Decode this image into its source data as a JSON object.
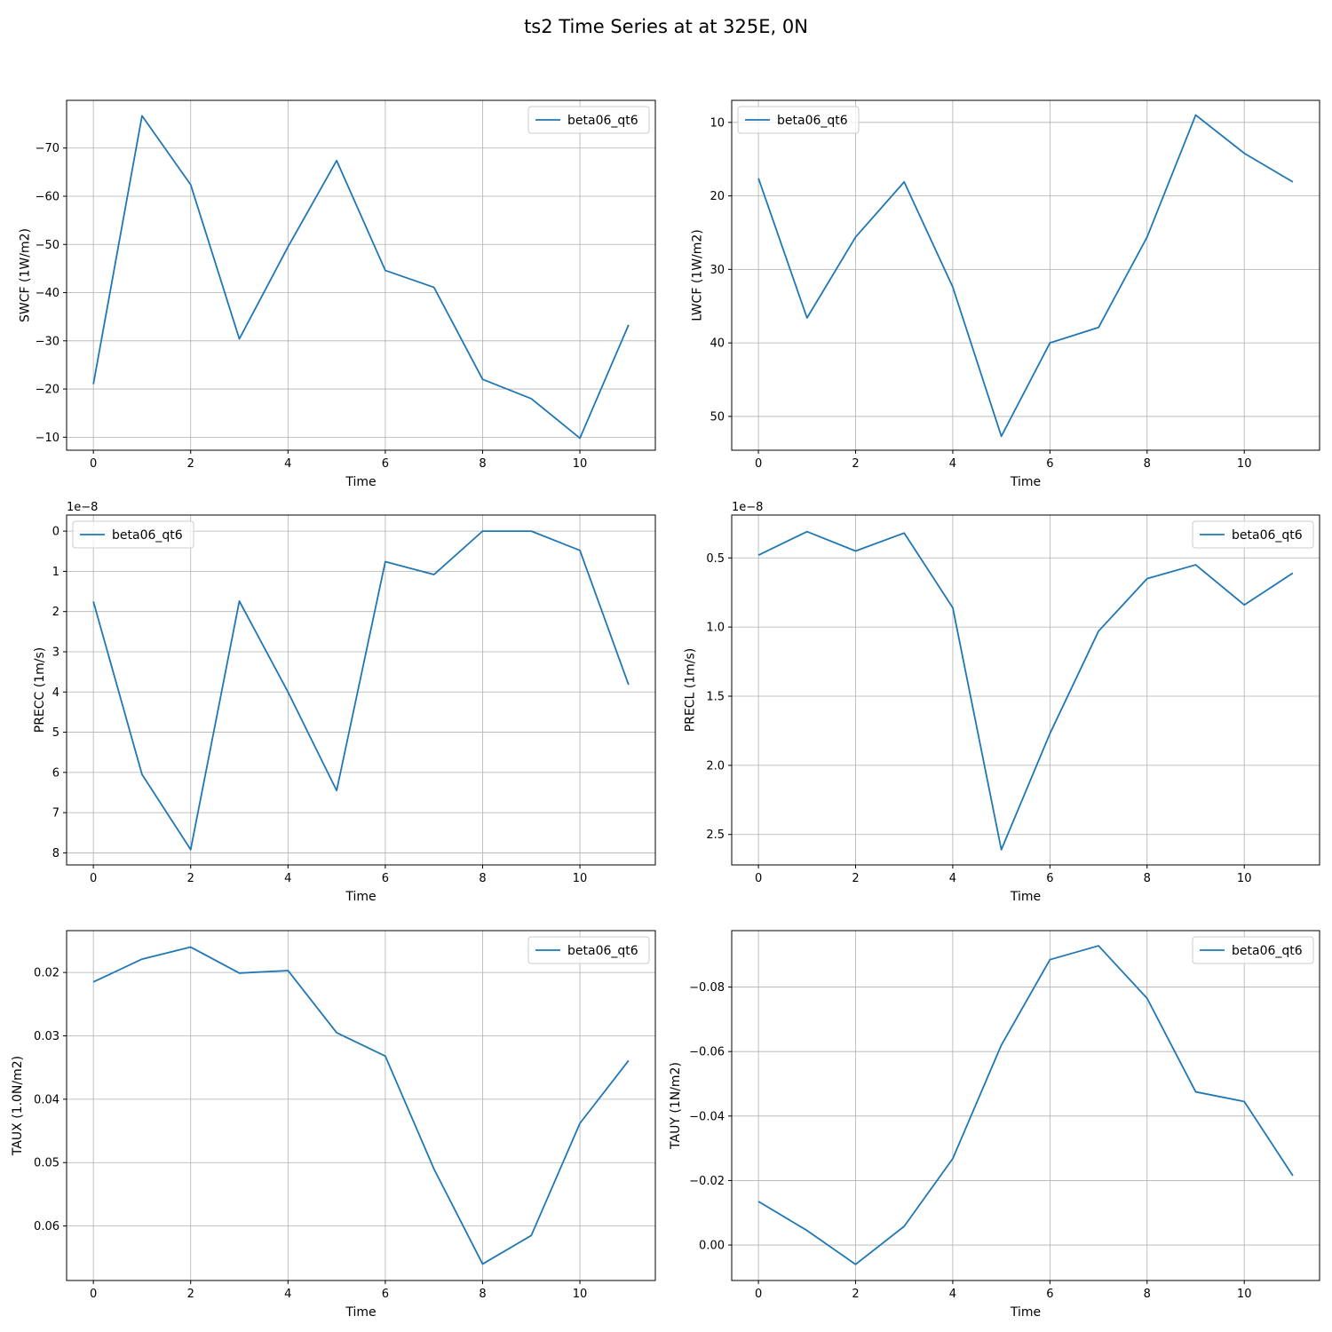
{
  "figure": {
    "suptitle": "ts2 Time Series at at 325E, 0N",
    "line_color": "#1f77b4",
    "grid_color": "#b0b0b0"
  },
  "chart_data": [
    {
      "type": "line",
      "title": "",
      "xlabel": "Time",
      "ylabel": "SWCF (1W/m2)",
      "x": [
        0,
        1,
        2,
        3,
        4,
        5,
        6,
        7,
        8,
        9,
        10,
        11
      ],
      "series": [
        {
          "name": "beta06_qt6",
          "values": [
            -21.0,
            -76.7,
            -62.4,
            -30.4,
            -49.5,
            -67.4,
            -44.6,
            -41.1,
            -22.0,
            -18.0,
            -9.8,
            -33.3
          ]
        }
      ],
      "xlim": [
        -0.55,
        11.55
      ],
      "ylim": [
        -7.3,
        -79.9
      ],
      "xticks": [
        0,
        2,
        4,
        6,
        8,
        10
      ],
      "yticks": [
        -70,
        -60,
        -50,
        -40,
        -30,
        -20,
        -10
      ],
      "ytick_labels": [
        "−70",
        "−60",
        "−50",
        "−40",
        "−30",
        "−20",
        "−10"
      ],
      "offset_text": "",
      "grid": true,
      "legend": "upper right"
    },
    {
      "type": "line",
      "title": "",
      "xlabel": "Time",
      "ylabel": "LWCF (1W/m2)",
      "x": [
        0,
        1,
        2,
        3,
        4,
        5,
        6,
        7,
        8,
        9,
        10,
        11
      ],
      "series": [
        {
          "name": "beta06_qt6",
          "values": [
            17.6,
            36.6,
            25.6,
            18.1,
            32.4,
            52.7,
            40.0,
            37.9,
            25.6,
            9.0,
            14.2,
            18.1
          ]
        }
      ],
      "xlim": [
        -0.55,
        11.55
      ],
      "ylim": [
        54.6,
        7.0
      ],
      "xticks": [
        0,
        2,
        4,
        6,
        8,
        10
      ],
      "yticks": [
        10,
        20,
        30,
        40,
        50
      ],
      "ytick_labels": [
        "10",
        "20",
        "30",
        "40",
        "50"
      ],
      "offset_text": "",
      "grid": true,
      "legend": "upper left"
    },
    {
      "type": "line",
      "title": "",
      "xlabel": "Time",
      "ylabel": "PRECC (1m/s)",
      "x": [
        0,
        1,
        2,
        3,
        4,
        5,
        6,
        7,
        8,
        9,
        10,
        11
      ],
      "series": [
        {
          "name": "beta06_qt6",
          "values": [
            1.75e-08,
            6.05e-08,
            7.92e-08,
            1.74e-08,
            4e-08,
            6.45e-08,
            7.6e-09,
            1.08e-08,
            0.0,
            0.0,
            4.8e-09,
            3.82e-08
          ]
        }
      ],
      "xlim": [
        -0.55,
        11.55
      ],
      "ylim": [
        8.3e-08,
        -4e-09
      ],
      "xticks": [
        0,
        2,
        4,
        6,
        8,
        10
      ],
      "yticks": [
        0,
        1e-08,
        2e-08,
        3e-08,
        4e-08,
        5e-08,
        6e-08,
        7e-08,
        8e-08
      ],
      "ytick_labels": [
        "0",
        "1",
        "2",
        "3",
        "4",
        "5",
        "6",
        "7",
        "8"
      ],
      "offset_text": "1e−8",
      "grid": true,
      "legend": "upper left"
    },
    {
      "type": "line",
      "title": "",
      "xlabel": "Time",
      "ylabel": "PRECL (1m/s)",
      "x": [
        0,
        1,
        2,
        3,
        4,
        5,
        6,
        7,
        8,
        9,
        10,
        11
      ],
      "series": [
        {
          "name": "beta06_qt6",
          "values": [
            4.8e-09,
            3.1e-09,
            4.5e-09,
            3.2e-09,
            8.6e-09,
            2.61e-08,
            1.77e-08,
            1.03e-08,
            6.5e-09,
            5.5e-09,
            8.4e-09,
            6.1e-09
          ]
        }
      ],
      "xlim": [
        -0.55,
        11.55
      ],
      "ylim": [
        2.72e-08,
        1.9e-09
      ],
      "xticks": [
        0,
        2,
        4,
        6,
        8,
        10
      ],
      "yticks": [
        5e-09,
        1e-08,
        1.5e-08,
        2e-08,
        2.5e-08
      ],
      "ytick_labels": [
        "0.5",
        "1.0",
        "1.5",
        "2.0",
        "2.5"
      ],
      "offset_text": "1e−8",
      "grid": true,
      "legend": "upper right"
    },
    {
      "type": "line",
      "title": "",
      "xlabel": "Time",
      "ylabel": "TAUX (1.0N/m2)",
      "x": [
        0,
        1,
        2,
        3,
        4,
        5,
        6,
        7,
        8,
        9,
        10,
        11
      ],
      "series": [
        {
          "name": "beta06_qt6",
          "values": [
            0.0215,
            0.0179,
            0.016,
            0.0201,
            0.0197,
            0.0295,
            0.0332,
            0.051,
            0.066,
            0.0615,
            0.0438,
            0.0339
          ]
        }
      ],
      "xlim": [
        -0.55,
        11.55
      ],
      "ylim": [
        0.0686,
        0.0134
      ],
      "xticks": [
        0,
        2,
        4,
        6,
        8,
        10
      ],
      "yticks": [
        0.02,
        0.03,
        0.04,
        0.05,
        0.06
      ],
      "ytick_labels": [
        "0.02",
        "0.03",
        "0.04",
        "0.05",
        "0.06"
      ],
      "offset_text": "",
      "grid": true,
      "legend": "upper right"
    },
    {
      "type": "line",
      "title": "",
      "xlabel": "Time",
      "ylabel": "TAUY (1N/m2)",
      "x": [
        0,
        1,
        2,
        3,
        4,
        5,
        6,
        7,
        8,
        9,
        10,
        11
      ],
      "series": [
        {
          "name": "beta06_qt6",
          "values": [
            -0.0135,
            -0.0045,
            0.006,
            -0.0058,
            -0.0268,
            -0.062,
            -0.0885,
            -0.0928,
            -0.0765,
            -0.0475,
            -0.0445,
            -0.0215
          ]
        }
      ],
      "xlim": [
        -0.55,
        11.55
      ],
      "ylim": [
        0.011,
        -0.0975
      ],
      "xticks": [
        0,
        2,
        4,
        6,
        8,
        10
      ],
      "yticks": [
        0.0,
        -0.02,
        -0.04,
        -0.06,
        -0.08
      ],
      "ytick_labels": [
        "0.00",
        "−0.02",
        "−0.04",
        "−0.06",
        "−0.08"
      ],
      "offset_text": "",
      "grid": true,
      "legend": "upper right"
    }
  ]
}
